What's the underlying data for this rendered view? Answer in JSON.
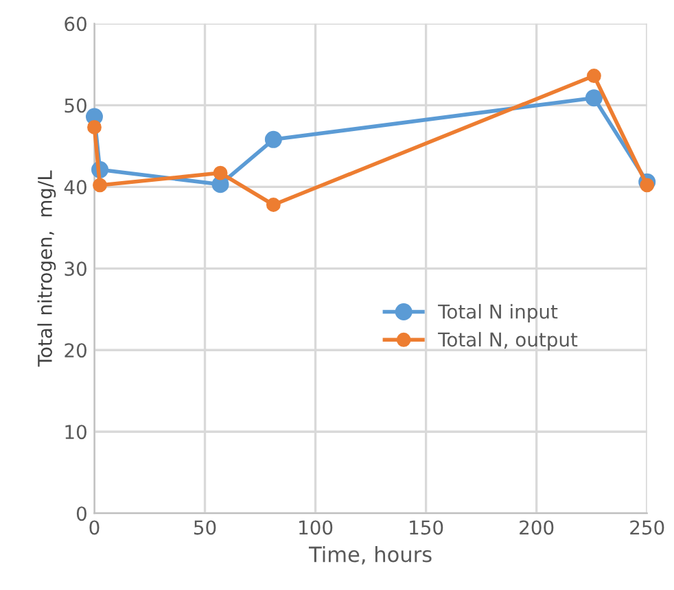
{
  "chart_data": {
    "type": "line",
    "xlabel": "Time, hours",
    "ylabel": "Total nitrogen,  mg/L",
    "xlim": [
      0,
      250
    ],
    "xticks": [
      0,
      50,
      100,
      150,
      200,
      250
    ],
    "ylim": [
      0,
      60
    ],
    "yticks": [
      0,
      10,
      20,
      30,
      40,
      50,
      60
    ],
    "grid": true,
    "legend": "center",
    "marker": "circle",
    "line_style": "solid",
    "series": [
      {
        "name": "Total N input",
        "color": "#5b9bd5",
        "x": [
          0,
          2.5,
          57,
          81,
          226,
          250
        ],
        "values": [
          48.6,
          42.1,
          40.3,
          45.8,
          50.9,
          40.6
        ]
      },
      {
        "name": "Total N, output",
        "color": "#ed7d31",
        "x": [
          0,
          2.5,
          57,
          81,
          226,
          250
        ],
        "values": [
          47.3,
          40.2,
          41.7,
          37.8,
          53.6,
          40.2
        ]
      }
    ]
  }
}
